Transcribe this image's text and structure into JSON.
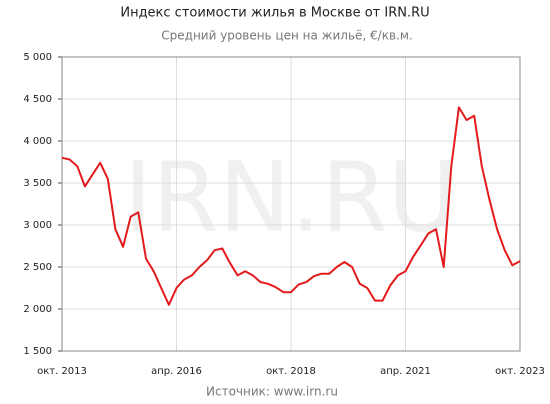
{
  "chart_data": {
    "type": "line",
    "title": "Индекс стоимости жилья в Москве от IRN.RU",
    "subtitle": "Средний уровень цен на жильё, €/кв.м.",
    "watermark": "IRN.RU",
    "source": "Источник: www.irn.ru",
    "categories": [
      "окт. 2013",
      null,
      null,
      null,
      null,
      null,
      null,
      null,
      null,
      null,
      null,
      null,
      null,
      null,
      null,
      "апр. 2016",
      null,
      null,
      null,
      null,
      null,
      null,
      null,
      null,
      null,
      null,
      null,
      null,
      null,
      null,
      "окт. 2018",
      null,
      null,
      null,
      null,
      null,
      null,
      null,
      null,
      null,
      null,
      null,
      null,
      null,
      null,
      "апр. 2021",
      null,
      null,
      null,
      null,
      null,
      null,
      null,
      null,
      null,
      null,
      null,
      null,
      null,
      null,
      "окт. 2023"
    ],
    "series": [
      {
        "name": "Индекс",
        "color": "#e41a1c",
        "values": [
          3800,
          3780,
          3700,
          3460,
          3600,
          3740,
          3550,
          2950,
          2740,
          3100,
          3150,
          2600,
          2450,
          2250,
          2050,
          2250,
          2350,
          2400,
          2500,
          2580,
          2700,
          2720,
          2550,
          2400,
          2450,
          2400,
          2320,
          2300,
          2260,
          2200,
          2200,
          2290,
          2320,
          2390,
          2420,
          2420,
          2500,
          2560,
          2500,
          2300,
          2250,
          2100,
          2100,
          2280,
          2400,
          2450,
          2620,
          2760,
          2900,
          2950,
          2500,
          3700,
          4400,
          4250,
          4300,
          3700,
          3300,
          2950,
          2700,
          2520,
          2570
        ]
      }
    ],
    "ylim": [
      1500,
      5000
    ],
    "yticks": [
      {
        "value": 1500,
        "label": "1 500"
      },
      {
        "value": 2000,
        "label": "2 000"
      },
      {
        "value": 2500,
        "label": "2 500"
      },
      {
        "value": 3000,
        "label": "3 000"
      },
      {
        "value": 3500,
        "label": "3 500"
      },
      {
        "value": 4000,
        "label": "4 000"
      },
      {
        "value": 4500,
        "label": "4 500"
      },
      {
        "value": 5000,
        "label": "5 000"
      }
    ],
    "grid": true
  }
}
